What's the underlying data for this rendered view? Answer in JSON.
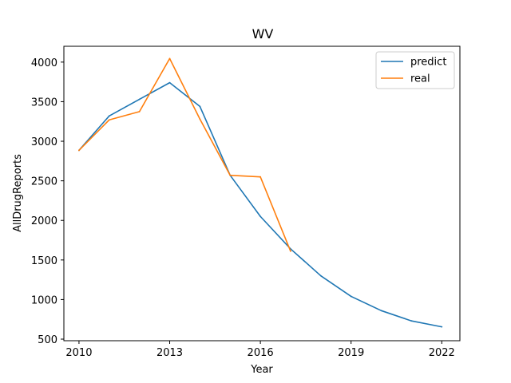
{
  "chart_data": {
    "type": "line",
    "title": "WV",
    "xlabel": "Year",
    "ylabel": "AllDrugReports",
    "xlim": [
      2009.5,
      2022.6
    ],
    "ylim": [
      480,
      4200
    ],
    "xticks": [
      2010,
      2013,
      2016,
      2019,
      2022
    ],
    "yticks": [
      500,
      1000,
      1500,
      2000,
      2500,
      3000,
      3500,
      4000
    ],
    "grid": false,
    "legend_position": "top-right",
    "series": [
      {
        "name": "predict",
        "color": "#1f77b4",
        "x": [
          2010,
          2011,
          2012,
          2013,
          2014,
          2015,
          2016,
          2017,
          2018,
          2019,
          2020,
          2021,
          2022
        ],
        "y": [
          2885,
          3320,
          3530,
          3740,
          3440,
          2570,
          2050,
          1640,
          1300,
          1040,
          860,
          730,
          655
        ]
      },
      {
        "name": "real",
        "color": "#ff7f0e",
        "x": [
          2010,
          2011,
          2012,
          2013,
          2014,
          2015,
          2016,
          2017
        ],
        "y": [
          2885,
          3270,
          3375,
          4045,
          3280,
          2570,
          2550,
          1610
        ]
      }
    ]
  }
}
